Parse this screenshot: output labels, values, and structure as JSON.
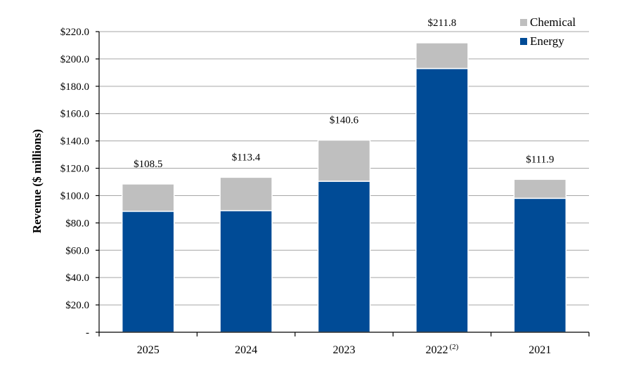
{
  "chart_data": {
    "type": "bar",
    "stacked": true,
    "categories": [
      "2025",
      "2024",
      "2023",
      "2022",
      "2021"
    ],
    "category_footnotes": [
      "",
      "",
      "",
      "(2)",
      ""
    ],
    "series": [
      {
        "name": "Energy",
        "values": [
          88.5,
          89.0,
          110.5,
          193.0,
          98.0
        ],
        "color": "#004b96"
      },
      {
        "name": "Chemical",
        "values": [
          20.0,
          24.4,
          30.1,
          18.8,
          13.9
        ],
        "color": "#bfbfbf"
      }
    ],
    "totals": [
      "$108.5",
      "$113.4",
      "$140.6",
      "$211.8",
      "$111.9"
    ],
    "ylabel": "Revenue ($ millions)",
    "ylim": [
      0,
      220
    ],
    "yticks": [
      0,
      20,
      40,
      60,
      80,
      100,
      120,
      140,
      160,
      180,
      200,
      220
    ],
    "ytick_labels": [
      "-",
      "$20.0",
      "$40.0",
      "$60.0",
      "$80.0",
      "$100.0",
      "$120.0",
      "$140.0",
      "$160.0",
      "$180.0",
      "$200.0",
      "$220.0"
    ],
    "grid": true,
    "legend": {
      "position": "top-right",
      "entries": [
        {
          "label": "Chemical",
          "color": "#bfbfbf"
        },
        {
          "label": "Energy",
          "color": "#004b96"
        }
      ]
    }
  }
}
